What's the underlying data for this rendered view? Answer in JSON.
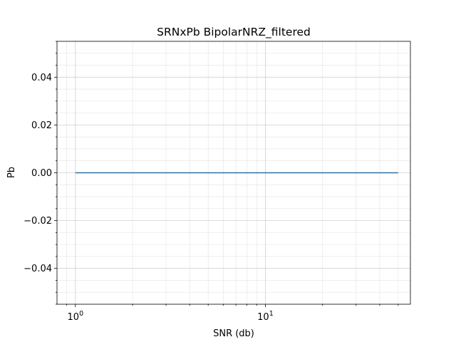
{
  "chart_data": {
    "type": "line",
    "title": "SRNxPb BipolarNRZ_filtered",
    "xlabel": "SNR (db)",
    "ylabel": "Pb",
    "xscale": "log",
    "xlim": [
      0.8,
      58
    ],
    "ylim": [
      -0.055,
      0.055
    ],
    "grid": "major and minor",
    "x_ticks": [
      {
        "value": 1,
        "base": "10",
        "exp": "0"
      },
      {
        "value": 10,
        "base": "10",
        "exp": "1"
      }
    ],
    "y_ticks": [
      {
        "value": 0.04,
        "label": "0.04"
      },
      {
        "value": 0.02,
        "label": "0.02"
      },
      {
        "value": 0.0,
        "label": "0.00"
      },
      {
        "value": -0.02,
        "label": "−0.02"
      },
      {
        "value": -0.04,
        "label": "−0.04"
      }
    ],
    "y_minor_step": 0.005,
    "series": [
      {
        "color": "#1f77b4",
        "x": [
          1,
          2,
          5,
          10,
          20,
          50
        ],
        "y": [
          0,
          0,
          0,
          0,
          0,
          0
        ]
      }
    ]
  }
}
